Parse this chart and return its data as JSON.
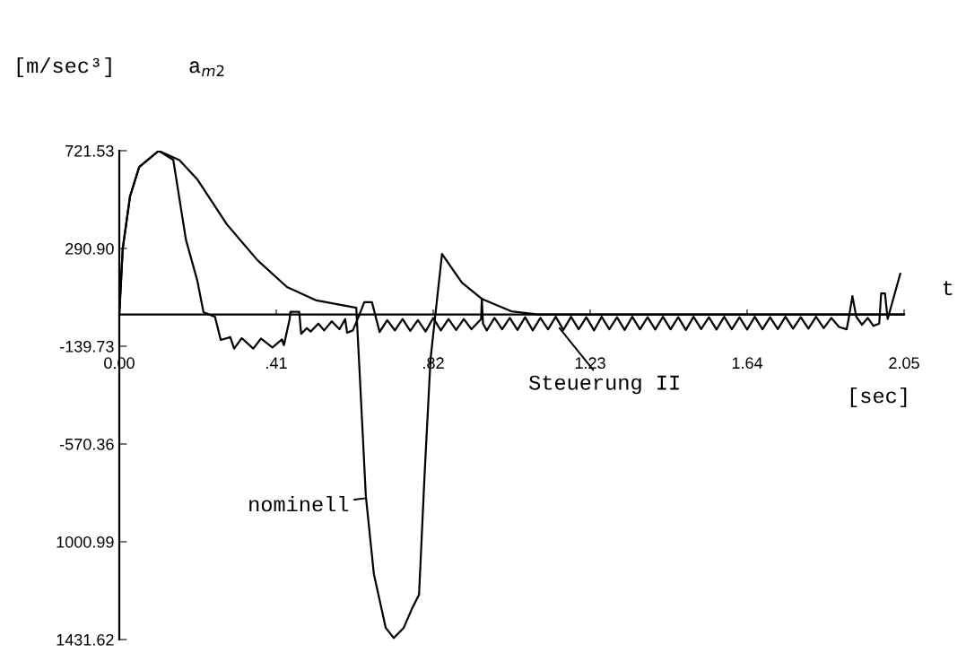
{
  "chart_data": {
    "type": "line",
    "title": "a$_{m2}$",
    "ylabel": "[m/sec³]",
    "xlabel": "t",
    "xlim": [
      0,
      2.05
    ],
    "xticks": [
      {
        "value": 0,
        "label": "0.00"
      },
      {
        "value": 0.41,
        "label": ".41"
      },
      {
        "value": 0.82,
        "label": ".82"
      },
      1.23,
      1.64,
      2.05
    ],
    "ylim": [
      -1431.62,
      721.53
    ],
    "yticks": [
      721.53,
      {
        "value": 290.9,
        "label": "290.90"
      },
      -139.73,
      -570.36,
      {
        "value": -1000.99,
        "label": "1000.99"
      },
      {
        "value": -1431.62,
        "label": "1431.62"
      }
    ],
    "series": [
      {
        "color": "#000000",
        "x": [
          0,
          0.009,
          0.028,
          0.052,
          0.103,
          0.157,
          0.204,
          0.281,
          0.361,
          0.438,
          0.515,
          0.619,
          0.626,
          0.644,
          0.665,
          0.696,
          0.717,
          0.743,
          0.766,
          0.783,
          0.797,
          0.813,
          0.843,
          0.895,
          0.947,
          1.024,
          1.094,
          2.05
        ],
        "values": [
          0,
          290,
          520,
          650,
          721,
          680,
          595,
          397,
          239,
          121,
          62,
          30,
          -196,
          -800,
          -1143,
          -1380,
          -1425,
          -1380,
          -1290,
          -1234,
          -721,
          -196,
          267,
          140,
          69,
          14,
          0,
          0
        ]
      },
      {
        "color": "#000000",
        "x": [
          0,
          0.009,
          0.028,
          0.052,
          0.103,
          0.141,
          0.174,
          0.204,
          0.22,
          0.25,
          0.265,
          0.29,
          0.3,
          0.32,
          0.35,
          0.37,
          0.4,
          0.425,
          0.43,
          0.445,
          0.447,
          0.47,
          0.475,
          0.49,
          0.5,
          0.52,
          0.535,
          0.555,
          0.575,
          0.59,
          0.595,
          0.61,
          0.625,
          0.64,
          0.66,
          0.68,
          0.7,
          0.72,
          0.74,
          0.76,
          0.78,
          0.8,
          0.82,
          0.84,
          0.86,
          0.88,
          0.9,
          0.92,
          0.945,
          0.947,
          0.95,
          0.96,
          0.98,
          1.0,
          1.02,
          1.04,
          1.06,
          1.08,
          1.1,
          1.12,
          1.14,
          1.16,
          1.18,
          1.2,
          1.22,
          1.24,
          1.26,
          1.28,
          1.3,
          1.32,
          1.34,
          1.36,
          1.38,
          1.4,
          1.42,
          1.44,
          1.46,
          1.48,
          1.5,
          1.52,
          1.54,
          1.56,
          1.58,
          1.6,
          1.62,
          1.64,
          1.66,
          1.68,
          1.7,
          1.72,
          1.74,
          1.76,
          1.78,
          1.8,
          1.82,
          1.84,
          1.86,
          1.88,
          1.9,
          1.905,
          1.915,
          1.925,
          1.94,
          1.955,
          1.97,
          1.985,
          1.99,
          2.0,
          2.007,
          2.04
        ],
        "values": [
          0,
          290,
          520,
          650,
          721,
          681,
          330,
          148,
          10,
          -10,
          -112,
          -100,
          -150,
          -104,
          -150,
          -106,
          -145,
          -110,
          -135,
          -20,
          12,
          12,
          -85,
          -60,
          -75,
          -40,
          -70,
          -30,
          -65,
          -20,
          -80,
          -70,
          -10,
          54,
          54,
          -77,
          -25,
          -70,
          -20,
          -72,
          -25,
          -75,
          -15,
          -70,
          -20,
          -68,
          -20,
          -65,
          -20,
          69,
          -40,
          -70,
          -15,
          -65,
          -15,
          -68,
          -12,
          -70,
          -15,
          -65,
          -10,
          -68,
          -10,
          -65,
          -12,
          -70,
          -10,
          -65,
          -12,
          -68,
          -10,
          -65,
          -12,
          -66,
          -10,
          -65,
          -12,
          -68,
          -10,
          -64,
          -12,
          -66,
          -10,
          -65,
          -12,
          -66,
          -10,
          -65,
          -12,
          -64,
          -10,
          -62,
          -12,
          -62,
          -10,
          -60,
          -15,
          -55,
          -65,
          -20,
          81,
          -10,
          -45,
          -15,
          -50,
          -40,
          93,
          93,
          -20,
          180
        ]
      }
    ],
    "annotations": [
      {
        "text": "nominell",
        "x": 0.64,
        "y": -810
      },
      {
        "text": "Steuerung II",
        "x": 1.15,
        "y": -60
      },
      "[sec]"
    ]
  }
}
